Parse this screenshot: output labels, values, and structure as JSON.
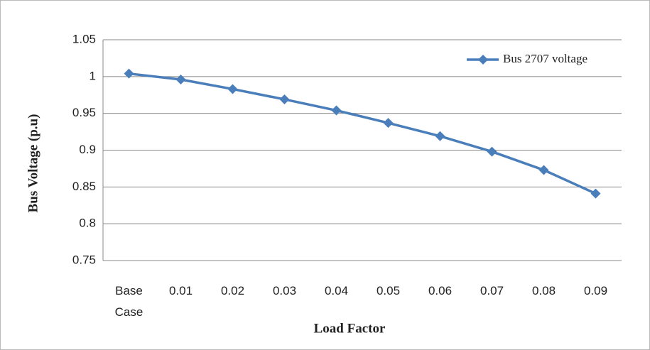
{
  "chart_data": {
    "type": "line",
    "x_label": "Load Factor",
    "y_label": "Bus  Voltage (p.u)",
    "categories": [
      "Base Case",
      "0.01",
      "0.02",
      "0.03",
      "0.04",
      "0.05",
      "0.06",
      "0.07",
      "0.08",
      "0.09"
    ],
    "series": [
      {
        "name": "Bus 2707 voltage",
        "color": "#4a7ebb",
        "values": [
          1.004,
          0.996,
          0.983,
          0.969,
          0.954,
          0.937,
          0.919,
          0.898,
          0.873,
          0.841
        ]
      }
    ],
    "ylim": [
      0.75,
      1.05
    ],
    "yticks": [
      0.75,
      0.8,
      0.85,
      0.9,
      0.95,
      1,
      1.05
    ],
    "grid": true,
    "legend": "top-right"
  }
}
